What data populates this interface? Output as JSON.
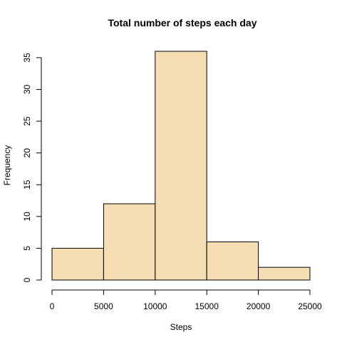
{
  "chart_data": {
    "type": "histogram",
    "title": "Total number of steps each day",
    "xlabel": "Steps",
    "ylabel": "Frequency",
    "bins": [
      {
        "from": 0,
        "to": 5000,
        "count": 5
      },
      {
        "from": 5000,
        "to": 10000,
        "count": 12
      },
      {
        "from": 10000,
        "to": 15000,
        "count": 36
      },
      {
        "from": 15000,
        "to": 20000,
        "count": 6
      },
      {
        "from": 20000,
        "to": 25000,
        "count": 2
      }
    ],
    "x_ticks": [
      0,
      5000,
      10000,
      15000,
      20000,
      25000
    ],
    "y_ticks": [
      0,
      5,
      10,
      15,
      20,
      25,
      30,
      35
    ],
    "xlim": [
      0,
      25000
    ],
    "ylim": [
      0,
      36
    ],
    "bar_color": "#F5DEB3",
    "border_color": "#000000",
    "grid": false
  }
}
